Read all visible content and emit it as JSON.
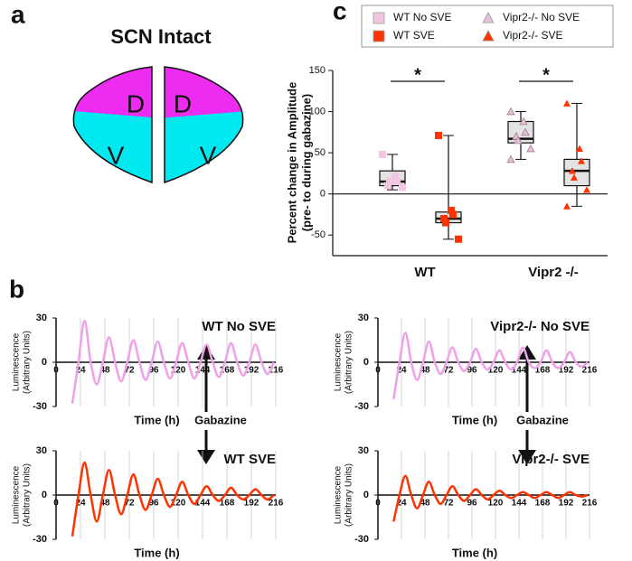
{
  "panel_labels": [
    "a",
    "b",
    "c"
  ],
  "diagram": {
    "title": "SCN Intact",
    "regions": [
      "D",
      "V",
      "D",
      "V"
    ]
  },
  "gabazine_labels": [
    "Gabazine",
    "Gabazine"
  ],
  "chart_data": [
    {
      "type": "box",
      "ylabel": [
        "Percent change in Amplitude",
        "(pre- to during gabazine)"
      ],
      "categories": [
        "WT",
        "Vipr2 -/-"
      ],
      "ylim": [
        -75,
        150
      ],
      "yticks": [
        -50,
        0,
        50,
        100,
        150
      ],
      "reference_line": 0,
      "significance": [
        "*",
        "*"
      ],
      "series": [
        {
          "name": "WT No SVE",
          "color": "#f2c6e2",
          "marker": "square",
          "category": 0,
          "box": [
            5,
            10,
            15,
            28,
            48
          ],
          "points": [
            48,
            22,
            15,
            10,
            15,
            8
          ]
        },
        {
          "name": "WT SVE",
          "color": "#ff3300",
          "marker": "square",
          "category": 0,
          "box": [
            -55,
            -35,
            -30,
            -22,
            71
          ],
          "points": [
            71,
            -20,
            -25,
            -30,
            -35,
            -55
          ]
        },
        {
          "name": "Vipr2-/- No SVE",
          "color": "#e6bfd8",
          "marker": "triangle",
          "category": 1,
          "box": [
            42,
            62,
            67,
            88,
            100
          ],
          "points": [
            100,
            88,
            75,
            70,
            65,
            55,
            42
          ]
        },
        {
          "name": "Vipr2-/- SVE",
          "color": "#ff3300",
          "marker": "triangle",
          "category": 1,
          "box": [
            -15,
            10,
            28,
            42,
            110
          ],
          "points": [
            110,
            55,
            40,
            28,
            20,
            5,
            -15
          ]
        }
      ]
    },
    {
      "type": "line",
      "title": "WT No SVE",
      "xlabel": "Time (h)",
      "ylabel": [
        "Luminescence",
        "(Arbitrary Units)"
      ],
      "color": "#f0a0e8",
      "xlim": [
        0,
        216
      ],
      "xticks": [
        0,
        24,
        48,
        72,
        96,
        120,
        144,
        168,
        192,
        216
      ],
      "ylim": [
        -30,
        30
      ],
      "yticks": [
        -30,
        0,
        30
      ],
      "x": [
        16,
        22,
        28,
        34,
        40,
        46,
        52,
        58,
        64,
        70,
        76,
        82,
        88,
        94,
        100,
        106,
        112,
        118,
        124,
        130,
        136,
        142,
        148,
        154,
        160,
        166,
        172,
        178,
        184,
        190,
        196,
        202,
        208,
        214
      ],
      "values": [
        -28,
        0,
        28,
        0,
        -15,
        0,
        17,
        0,
        -13,
        0,
        15,
        0,
        -12,
        0,
        14,
        0,
        -11,
        0,
        13,
        0,
        -11,
        0,
        12,
        0,
        -10,
        0,
        13,
        0,
        -9,
        0,
        12,
        0,
        -8,
        0
      ]
    },
    {
      "type": "line",
      "title": "Vipr2-/- No SVE",
      "xlabel": "Time (h)",
      "ylabel": [
        "Luminescence",
        "(Arbitrary Units)"
      ],
      "color": "#f0a0e8",
      "xlim": [
        0,
        216
      ],
      "xticks": [
        0,
        24,
        48,
        72,
        96,
        120,
        144,
        168,
        192,
        216
      ],
      "ylim": [
        -30,
        30
      ],
      "yticks": [
        -30,
        0,
        30
      ],
      "x": [
        16,
        22,
        28,
        34,
        40,
        46,
        52,
        58,
        64,
        70,
        76,
        82,
        88,
        94,
        100,
        106,
        112,
        118,
        124,
        130,
        136,
        142,
        148,
        154,
        160,
        166,
        172,
        178,
        184,
        190,
        196,
        202,
        208,
        214
      ],
      "values": [
        -25,
        0,
        20,
        0,
        -12,
        0,
        14,
        0,
        -8,
        0,
        10,
        0,
        -6,
        0,
        9,
        0,
        -5,
        0,
        8,
        0,
        -5,
        0,
        10,
        0,
        -4,
        0,
        8,
        0,
        -4,
        0,
        7,
        0,
        -3,
        0
      ]
    },
    {
      "type": "line",
      "title": "WT SVE",
      "xlabel": "Time (h)",
      "ylabel": [
        "Luminescence",
        "(Arbitrary Units)"
      ],
      "color": "#ff3300",
      "xlim": [
        0,
        216
      ],
      "xticks": [
        0,
        24,
        48,
        72,
        96,
        120,
        144,
        168,
        192,
        216
      ],
      "ylim": [
        -30,
        30
      ],
      "yticks": [
        -30,
        0,
        30
      ],
      "x": [
        16,
        22,
        28,
        34,
        40,
        46,
        52,
        58,
        64,
        70,
        76,
        82,
        88,
        94,
        100,
        106,
        112,
        118,
        124,
        130,
        136,
        142,
        148,
        154,
        160,
        166,
        172,
        178,
        184,
        190,
        196,
        202,
        208,
        214
      ],
      "values": [
        -28,
        0,
        22,
        0,
        -18,
        0,
        17,
        0,
        -13,
        0,
        14,
        0,
        -10,
        0,
        11,
        0,
        -8,
        0,
        9,
        0,
        -6,
        0,
        6,
        0,
        -4,
        0,
        5,
        0,
        -3,
        0,
        4,
        0,
        -3,
        0
      ]
    },
    {
      "type": "line",
      "title": "Vipr2-/- SVE",
      "xlabel": "Time (h)",
      "ylabel": [
        "Luminescence",
        "(Arbitrary Units)"
      ],
      "color": "#ff3300",
      "xlim": [
        0,
        216
      ],
      "xticks": [
        0,
        24,
        48,
        72,
        96,
        120,
        144,
        168,
        192,
        216
      ],
      "ylim": [
        -30,
        30
      ],
      "yticks": [
        -30,
        0,
        30
      ],
      "x": [
        16,
        22,
        28,
        34,
        40,
        46,
        52,
        58,
        64,
        70,
        76,
        82,
        88,
        94,
        100,
        106,
        112,
        118,
        124,
        130,
        136,
        142,
        148,
        154,
        160,
        166,
        172,
        178,
        184,
        190,
        196,
        202,
        208,
        214
      ],
      "values": [
        -18,
        0,
        13,
        0,
        -9,
        0,
        9,
        0,
        -6,
        0,
        6,
        0,
        -4,
        0,
        4,
        0,
        -3,
        0,
        3,
        0,
        -2,
        0,
        2,
        0,
        -2,
        0,
        2,
        0,
        -2,
        0,
        2,
        0,
        -1,
        0
      ]
    }
  ]
}
